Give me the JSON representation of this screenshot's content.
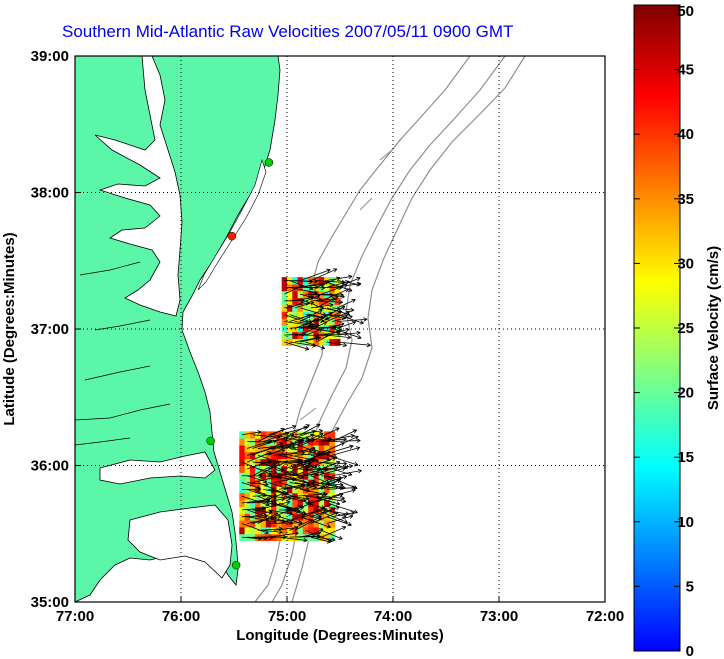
{
  "title": "Southern Mid-Atlantic Raw Velocities 2007/05/11 0900 GMT",
  "x_axis": {
    "label": "Longitude (Degrees:Minutes)",
    "ticks": [
      {
        "lon": -77,
        "label": "77:00"
      },
      {
        "lon": -76,
        "label": "76:00"
      },
      {
        "lon": -75,
        "label": "75:00"
      },
      {
        "lon": -74,
        "label": "74:00"
      },
      {
        "lon": -73,
        "label": "73:00"
      },
      {
        "lon": -72,
        "label": "72:00"
      }
    ]
  },
  "y_axis": {
    "label": "Latitude (Degrees:Minutes)",
    "ticks": [
      {
        "lat": 39,
        "label": "39:00"
      },
      {
        "lat": 38,
        "label": "38:00"
      },
      {
        "lat": 37,
        "label": "37:00"
      },
      {
        "lat": 36,
        "label": "36:00"
      },
      {
        "lat": 35,
        "label": "35:00"
      }
    ]
  },
  "extent": {
    "lon_min": -77,
    "lon_max": -72,
    "lat_min": 35,
    "lat_max": 39
  },
  "grid": true,
  "colorbar": {
    "label": "Surface Velocity (cm/s)",
    "min": 0,
    "max": 50,
    "ticks": [
      "0",
      "5",
      "10",
      "15",
      "20",
      "25",
      "30",
      "35",
      "40",
      "45",
      "50"
    ],
    "colors": [
      "#0000ff",
      "#0080ff",
      "#00ffff",
      "#80ff80",
      "#ffff00",
      "#ff8000",
      "#ff0000",
      "#800000"
    ]
  },
  "colors": {
    "land": "#5cf6a8",
    "contour": "#909090",
    "arrow": "#000000",
    "title": "#0000ee"
  },
  "stations": [
    {
      "lon": -75.17,
      "lat": 38.22,
      "color": "#00cc00"
    },
    {
      "lon": -75.52,
      "lat": 37.68,
      "color": "#ee2200"
    },
    {
      "lon": -75.72,
      "lat": 36.18,
      "color": "#00cc00"
    },
    {
      "lon": -75.48,
      "lat": 35.27,
      "color": "#00cc00"
    }
  ],
  "velocity_clusters": [
    {
      "name": "north",
      "lon_min": -75.05,
      "lon_max": -74.55,
      "lat_min": 36.88,
      "lat_max": 37.35,
      "speed_min": 15,
      "speed_max": 48
    },
    {
      "name": "south",
      "lon_min": -75.45,
      "lon_max": -74.6,
      "lat_min": 35.45,
      "lat_max": 36.2,
      "speed_min": 18,
      "speed_max": 48
    }
  ]
}
